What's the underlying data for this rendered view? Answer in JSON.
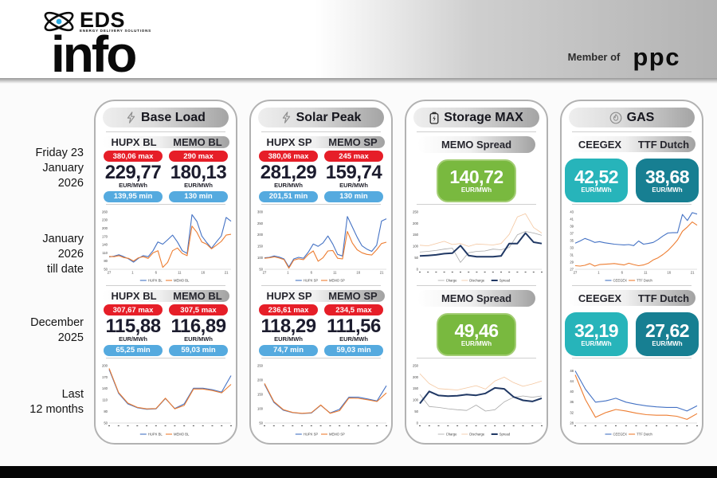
{
  "header": {
    "logo_top": "EDS",
    "logo_tagline": "ENERGY DELIVERY SOLUTIONS",
    "logo_main": "info",
    "member_of": "Member of",
    "member_brand": "ppc"
  },
  "row_labels": {
    "day": "Friday 23\nJanuary\n2026",
    "month_to_date": "January\n2026\ntill date",
    "prev_month": "December\n2025",
    "last_12m": "Last\n12 months"
  },
  "colors": {
    "max_badge": "#e61e28",
    "min_badge": "#55aadf",
    "spread_box": "#79b93f",
    "ceegex_box": "#27b4ba",
    "ttf_box": "#177f92",
    "hupx_line": "#4472c4",
    "memo_line": "#ed7d31",
    "spread_line": "#203864"
  },
  "columns": [
    {
      "title": "Base Load",
      "icon": "lightning",
      "day": {
        "cols": [
          "HUPX BL",
          "MEMO BL"
        ],
        "stats": [
          {
            "max": "380,06 max",
            "value": "229,77",
            "unit": "EUR/MWh",
            "min": "139,95 min"
          },
          {
            "max": "290 max",
            "value": "180,13",
            "unit": "EUR/MWh",
            "min": "130 min"
          }
        ]
      },
      "dec": {
        "cols": [
          "HUPX BL",
          "MEMO BL"
        ],
        "stats": [
          {
            "max": "307,67 max",
            "value": "115,88",
            "unit": "EUR/MWh",
            "min": "65,25 min"
          },
          {
            "max": "307,5 max",
            "value": "116,89",
            "unit": "EUR/MWh",
            "min": "59,03 min"
          }
        ]
      }
    },
    {
      "title": "Solar Peak",
      "icon": "lightning",
      "day": {
        "cols": [
          "HUPX SP",
          "MEMO SP"
        ],
        "stats": [
          {
            "max": "380,06 max",
            "value": "281,29",
            "unit": "EUR/MWh",
            "min": "201,51 min"
          },
          {
            "max": "245 max",
            "value": "159,74",
            "unit": "EUR/MWh",
            "min": "130 min"
          }
        ]
      },
      "dec": {
        "cols": [
          "HUPX SP",
          "MEMO SP"
        ],
        "stats": [
          {
            "max": "236,61 max",
            "value": "118,29",
            "unit": "EUR/MWh",
            "min": "74,7 min"
          },
          {
            "max": "234,5 max",
            "value": "111,56",
            "unit": "EUR/MWh",
            "min": "59,03 min"
          }
        ]
      }
    },
    {
      "title": "Storage MAX",
      "icon": "battery",
      "day": {
        "head": "MEMO Spread",
        "value": "140,72",
        "unit": "EUR/MWh"
      },
      "dec": {
        "head": "MEMO Spread",
        "value": "49,46",
        "unit": "EUR/MWh"
      }
    },
    {
      "title": "GAS",
      "icon": "flame",
      "day": {
        "cols": [
          "CEEGEX",
          "TTF Dutch"
        ],
        "boxes": [
          {
            "value": "42,52",
            "unit": "EUR/MWh"
          },
          {
            "value": "38,68",
            "unit": "EUR/MWh"
          }
        ]
      },
      "dec": {
        "cols": [
          "CEEGEX",
          "TTF Dutch"
        ],
        "boxes": [
          {
            "value": "32,19",
            "unit": "EUR/MWh"
          },
          {
            "value": "27,62",
            "unit": "EUR/MWh"
          }
        ]
      }
    }
  ],
  "chart_data": [
    {
      "id": "base-load-january",
      "type": "line",
      "ylim": [
        50,
        260
      ],
      "yticks": [
        50,
        80,
        110,
        140,
        170,
        200,
        230,
        260
      ],
      "xticks": [
        "27",
        "1",
        "6",
        "11",
        "16",
        "21"
      ],
      "series": [
        {
          "name": "HUPX BL",
          "color": "#4472c4",
          "w": 1.1,
          "values": [
            95,
            98,
            103,
            96,
            88,
            76,
            90,
            100,
            96,
            118,
            150,
            142,
            158,
            175,
            150,
            118,
            108,
            250,
            225,
            172,
            148,
            127,
            150,
            172,
            240,
            226
          ]
        },
        {
          "name": "MEMO BL",
          "color": "#ed7d31",
          "w": 1.1,
          "values": [
            97,
            96,
            100,
            93,
            90,
            80,
            92,
            96,
            90,
            110,
            118,
            57,
            75,
            118,
            128,
            108,
            100,
            208,
            185,
            150,
            142,
            125,
            138,
            152,
            175,
            178
          ]
        }
      ]
    },
    {
      "id": "solar-peak-january",
      "type": "line",
      "ylim": [
        50,
        300
      ],
      "yticks": [
        50,
        100,
        150,
        200,
        250,
        300
      ],
      "xticks": [
        "27",
        "1",
        "6",
        "11",
        "16",
        "21"
      ],
      "series": [
        {
          "name": "HUPX SP",
          "color": "#4472c4",
          "w": 1.1,
          "values": [
            100,
            102,
            108,
            103,
            95,
            60,
            95,
            102,
            98,
            125,
            160,
            150,
            165,
            195,
            160,
            115,
            108,
            280,
            235,
            190,
            152,
            138,
            128,
            155,
            260,
            270
          ]
        },
        {
          "name": "MEMO SP",
          "color": "#ed7d31",
          "w": 1.1,
          "values": [
            98,
            100,
            104,
            99,
            92,
            55,
            90,
            96,
            92,
            115,
            130,
            85,
            100,
            130,
            132,
            98,
            95,
            215,
            165,
            135,
            122,
            115,
            112,
            135,
            162,
            168
          ]
        }
      ]
    },
    {
      "id": "storage-max-january",
      "type": "line",
      "ylim": [
        0,
        250
      ],
      "yticks": [
        0,
        50,
        100,
        150,
        200,
        250
      ],
      "xticks": [],
      "series": [
        {
          "name": "Charge",
          "color": "#a9a9a9",
          "w": 0.8,
          "values": [
            75,
            78,
            82,
            88,
            92,
            30,
            72,
            78,
            80,
            88,
            85,
            95,
            150,
            165,
            158,
            148
          ]
        },
        {
          "name": "Discharge",
          "color": "#f4c7a0",
          "w": 0.8,
          "values": [
            105,
            102,
            112,
            122,
            108,
            112,
            100,
            110,
            108,
            106,
            112,
            152,
            228,
            242,
            182,
            158
          ]
        },
        {
          "name": "Spread",
          "color": "#203864",
          "w": 2,
          "values": [
            58,
            60,
            63,
            68,
            70,
            103,
            60,
            55,
            55,
            55,
            58,
            112,
            112,
            158,
            118,
            112
          ]
        }
      ]
    },
    {
      "id": "gas-january",
      "type": "line",
      "ylim": [
        27,
        43
      ],
      "yticks": [
        27,
        29,
        31,
        33,
        35,
        37,
        39,
        41,
        43
      ],
      "xticks": [
        "27",
        "1",
        "6",
        "11",
        "16",
        "21"
      ],
      "series": [
        {
          "name": "CEEGEX",
          "color": "#4472c4",
          "w": 1.1,
          "values": [
            34.3,
            34.9,
            35.6,
            35.1,
            34.5,
            34.7,
            34.4,
            34.2,
            34,
            33.9,
            33.8,
            33.9,
            33.6,
            34.9,
            34,
            34.2,
            34.5,
            35.3,
            36.3,
            37.1,
            37.2,
            37.2,
            42.3,
            40.6,
            42.8,
            42.4
          ]
        },
        {
          "name": "TTF Dutch",
          "color": "#ed7d31",
          "w": 1.1,
          "values": [
            28,
            27.9,
            28.1,
            28.6,
            27.9,
            28.3,
            28.4,
            28.5,
            28.6,
            28.4,
            28.2,
            28.7,
            28.3,
            28,
            28.2,
            28.7,
            29.6,
            30.2,
            31.1,
            32.2,
            33.6,
            35.2,
            37.6,
            38.8,
            40.2,
            39.3
          ]
        }
      ]
    },
    {
      "id": "base-load-12-months",
      "type": "line",
      "ylim": [
        50,
        200
      ],
      "yticks": [
        50,
        80,
        110,
        140,
        170,
        200
      ],
      "xticks": [],
      "series": [
        {
          "name": "HUPX BL",
          "color": "#4472c4",
          "w": 1.1,
          "values": [
            190,
            128,
            100,
            90,
            86,
            87,
            114,
            88,
            100,
            141,
            141,
            137,
            131,
            174
          ]
        },
        {
          "name": "MEMO BL",
          "color": "#ed7d31",
          "w": 1.1,
          "values": [
            193,
            130,
            102,
            91,
            87,
            88,
            115,
            87,
            96,
            139,
            139,
            135,
            129,
            151
          ]
        }
      ]
    },
    {
      "id": "solar-peak-12-months",
      "type": "line",
      "ylim": [
        50,
        250
      ],
      "yticks": [
        50,
        100,
        150,
        200,
        250
      ],
      "xticks": [],
      "series": [
        {
          "name": "HUPX SP",
          "color": "#4472c4",
          "w": 1.1,
          "values": [
            185,
            122,
            95,
            86,
            83,
            85,
            112,
            85,
            98,
            140,
            140,
            134,
            127,
            180
          ]
        },
        {
          "name": "MEMO SP",
          "color": "#ed7d31",
          "w": 1.1,
          "values": [
            188,
            125,
            97,
            87,
            84,
            86,
            113,
            84,
            93,
            137,
            136,
            131,
            125,
            155
          ]
        }
      ]
    },
    {
      "id": "storage-max-12-months",
      "type": "line",
      "ylim": [
        0,
        250
      ],
      "yticks": [
        0,
        50,
        100,
        150,
        200,
        250
      ],
      "xticks": [],
      "series": [
        {
          "name": "Charge",
          "color": "#a9a9a9",
          "w": 0.8,
          "values": [
            125,
            72,
            68,
            62,
            58,
            55,
            78,
            52,
            58,
            92,
            112,
            118,
            112,
            118
          ]
        },
        {
          "name": "Discharge",
          "color": "#f4c7a0",
          "w": 0.8,
          "values": [
            215,
            172,
            150,
            147,
            144,
            153,
            163,
            148,
            183,
            200,
            176,
            160,
            170,
            183
          ]
        },
        {
          "name": "Spread",
          "color": "#203864",
          "w": 2,
          "values": [
            85,
            138,
            120,
            117,
            119,
            124,
            121,
            129,
            153,
            149,
            114,
            99,
            94,
            108
          ]
        }
      ]
    },
    {
      "id": "gas-12-months",
      "type": "line",
      "ylim": [
        28,
        50
      ],
      "yticks": [
        28,
        32,
        36,
        40,
        44,
        48
      ],
      "xticks": [],
      "series": [
        {
          "name": "CEEGEX",
          "color": "#4472c4",
          "w": 1.1,
          "values": [
            48,
            41,
            36,
            36.5,
            37.5,
            36,
            35.2,
            34.6,
            34.2,
            34,
            34,
            32.6,
            34.6
          ]
        },
        {
          "name": "TTF Dutch",
          "color": "#ed7d31",
          "w": 1.1,
          "values": [
            46.5,
            37,
            30.2,
            32,
            33.2,
            32.6,
            31.8,
            31.2,
            31,
            31,
            30.6,
            29.4,
            31.6
          ]
        }
      ]
    }
  ]
}
